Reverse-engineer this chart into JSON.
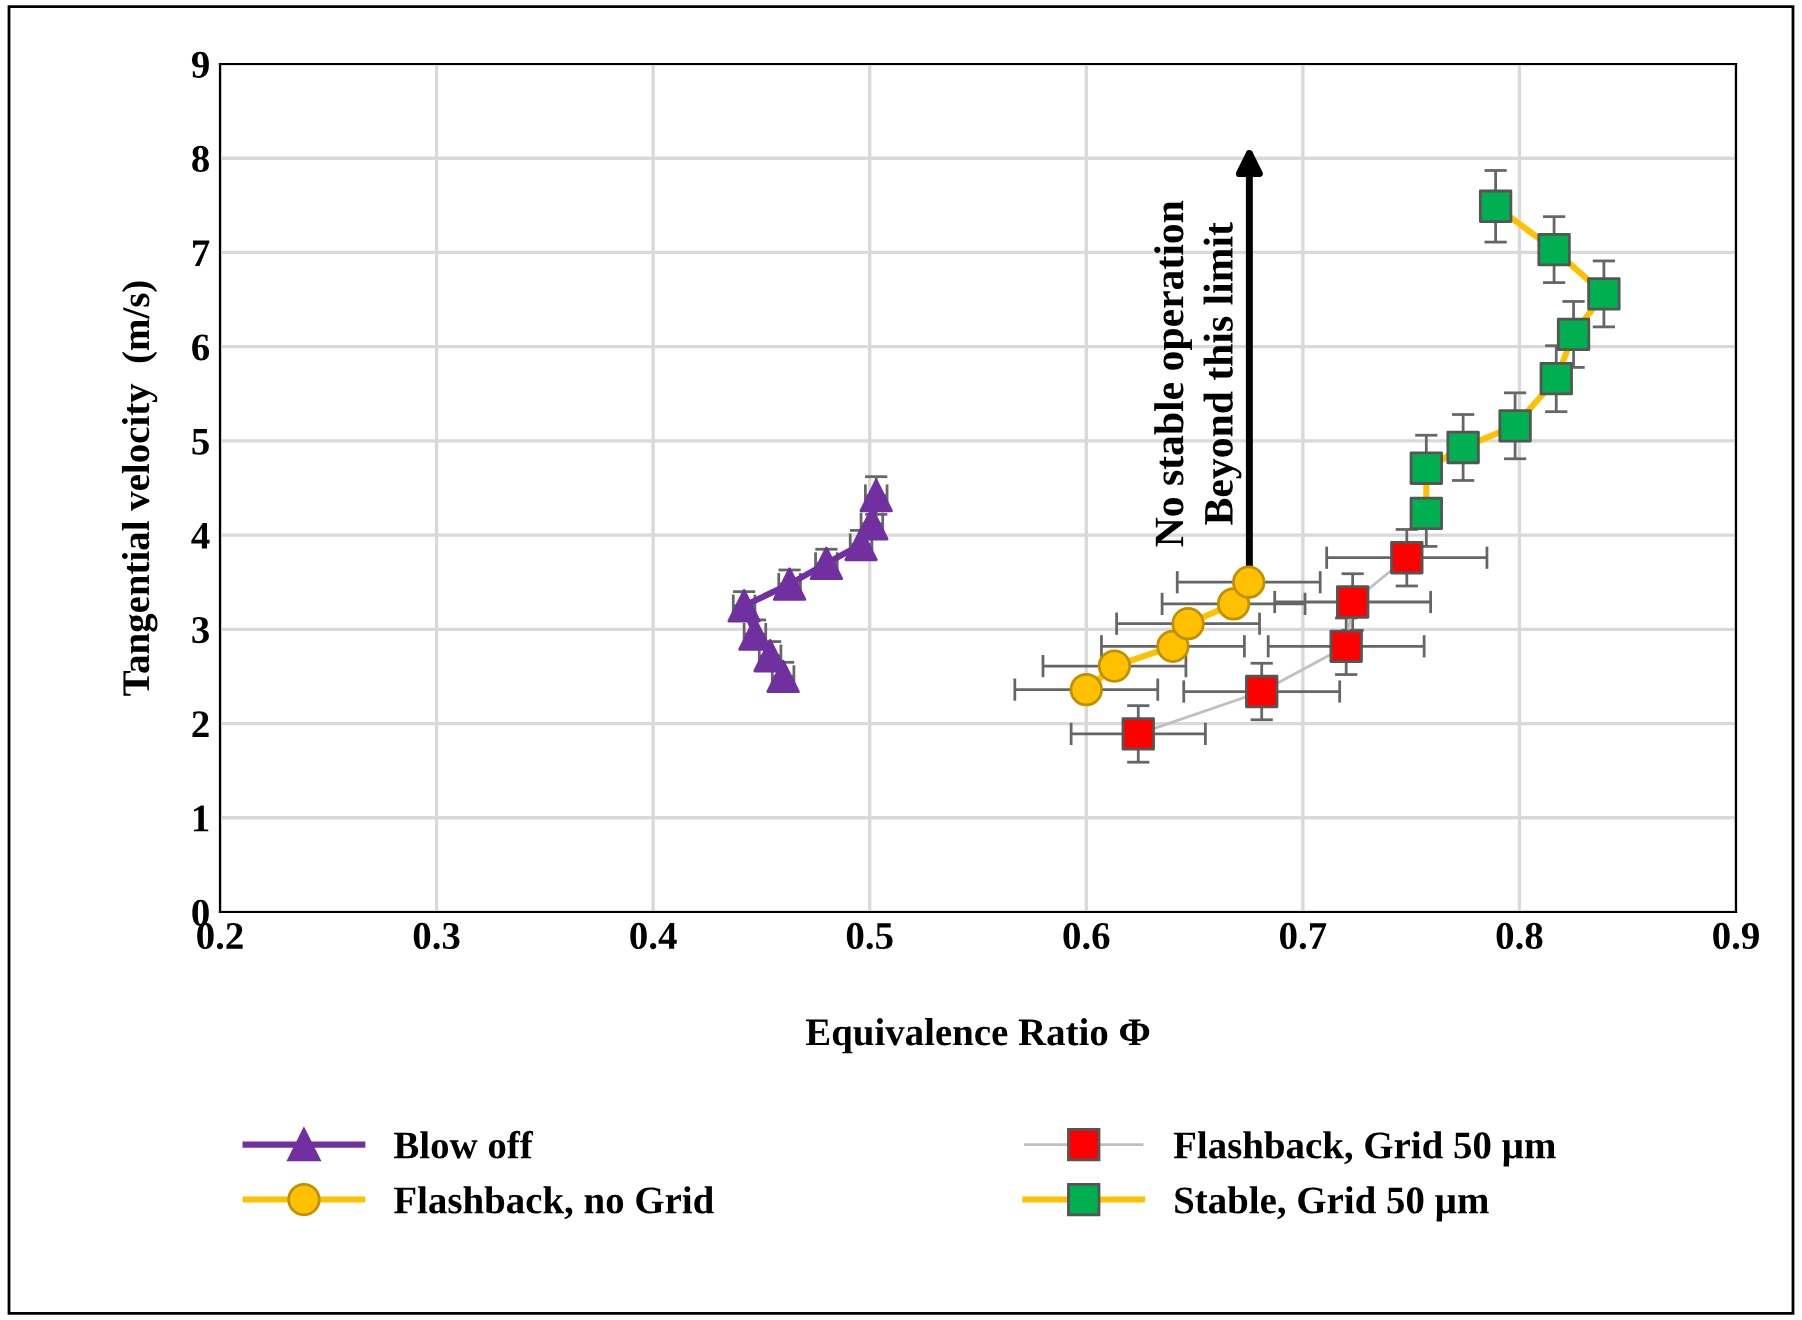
{
  "chart_data": {
    "type": "line",
    "xlabel": "Equivalence Ratio Φ",
    "ylabel": "Tangential velocity  (m/s)",
    "xlim": [
      0.2,
      0.9
    ],
    "xticks": [
      0.2,
      0.3,
      0.4,
      0.5,
      0.6,
      0.7,
      0.8,
      0.9
    ],
    "ylim": [
      0,
      9
    ],
    "yticks": [
      0,
      1,
      2,
      3,
      4,
      5,
      6,
      7,
      8,
      9
    ],
    "grid": true,
    "legend": "bottom",
    "annotations": [
      "No stable operation\nBeyond this limit"
    ],
    "series": [
      {
        "name": "Blow off",
        "color": "#7030a0",
        "marker": "triangle",
        "x": [
          0.46,
          0.454,
          0.447,
          0.442,
          0.463,
          0.48,
          0.496,
          0.501,
          0.503
        ],
        "values": [
          2.5,
          2.72,
          2.95,
          3.25,
          3.48,
          3.7,
          3.9,
          4.12,
          4.42
        ],
        "errors": [
          0.15,
          0.15,
          0.15,
          0.15,
          0.15,
          0.15,
          0.15,
          0.15,
          0.2
        ],
        "xerrors": [
          0.005,
          0.005,
          0.005,
          0.005,
          0.005,
          0.005,
          0.005,
          0.005,
          0.005
        ]
      },
      {
        "name": "Flashback, no Grid",
        "color": "#ffc000",
        "marker": "circle",
        "x": [
          0.6,
          0.613,
          0.64,
          0.647,
          0.668,
          0.675
        ],
        "values": [
          2.36,
          2.61,
          2.82,
          3.06,
          3.27,
          3.5
        ],
        "xerrors": [
          0.033,
          0.033,
          0.033,
          0.033,
          0.033,
          0.033
        ]
      },
      {
        "name": "Flashback, Grid 50 µm",
        "color": "#c0c0c0",
        "marker": "square",
        "colors": [
          "#ff0000",
          "#ff0000",
          "#ff0000",
          "#ff0000",
          "#ff0000"
        ],
        "x": [
          0.624,
          0.681,
          0.72,
          0.723,
          0.748
        ],
        "values": [
          1.89,
          2.34,
          2.82,
          3.29,
          3.76
        ],
        "errors": [
          0.3,
          0.3,
          0.3,
          0.3,
          0.3
        ],
        "xerrors": [
          0.031,
          0.036,
          0.036,
          0.036,
          0.037
        ]
      },
      {
        "name": "Stable, Grid 50 µm",
        "color": "#ffc000",
        "marker": "square",
        "colors": [
          "#00b050",
          "#00b050",
          "#00b050",
          "#00b050",
          "#00b050",
          "#00b050",
          "#00b050",
          "#00b050",
          "#00b050"
        ],
        "x": [
          0.757,
          0.757,
          0.774,
          0.798,
          0.817,
          0.825,
          0.839,
          0.816,
          0.789
        ],
        "values": [
          4.23,
          4.71,
          4.93,
          5.16,
          5.66,
          6.13,
          6.56,
          7.03,
          7.49
        ],
        "errors": [
          0.35,
          0.35,
          0.35,
          0.35,
          0.35,
          0.35,
          0.35,
          0.35,
          0.38
        ],
        "xerrors": [
          0.005,
          0.005,
          0.005,
          0.005,
          0.005,
          0.005,
          0.005,
          0.005,
          0.005
        ]
      }
    ]
  }
}
